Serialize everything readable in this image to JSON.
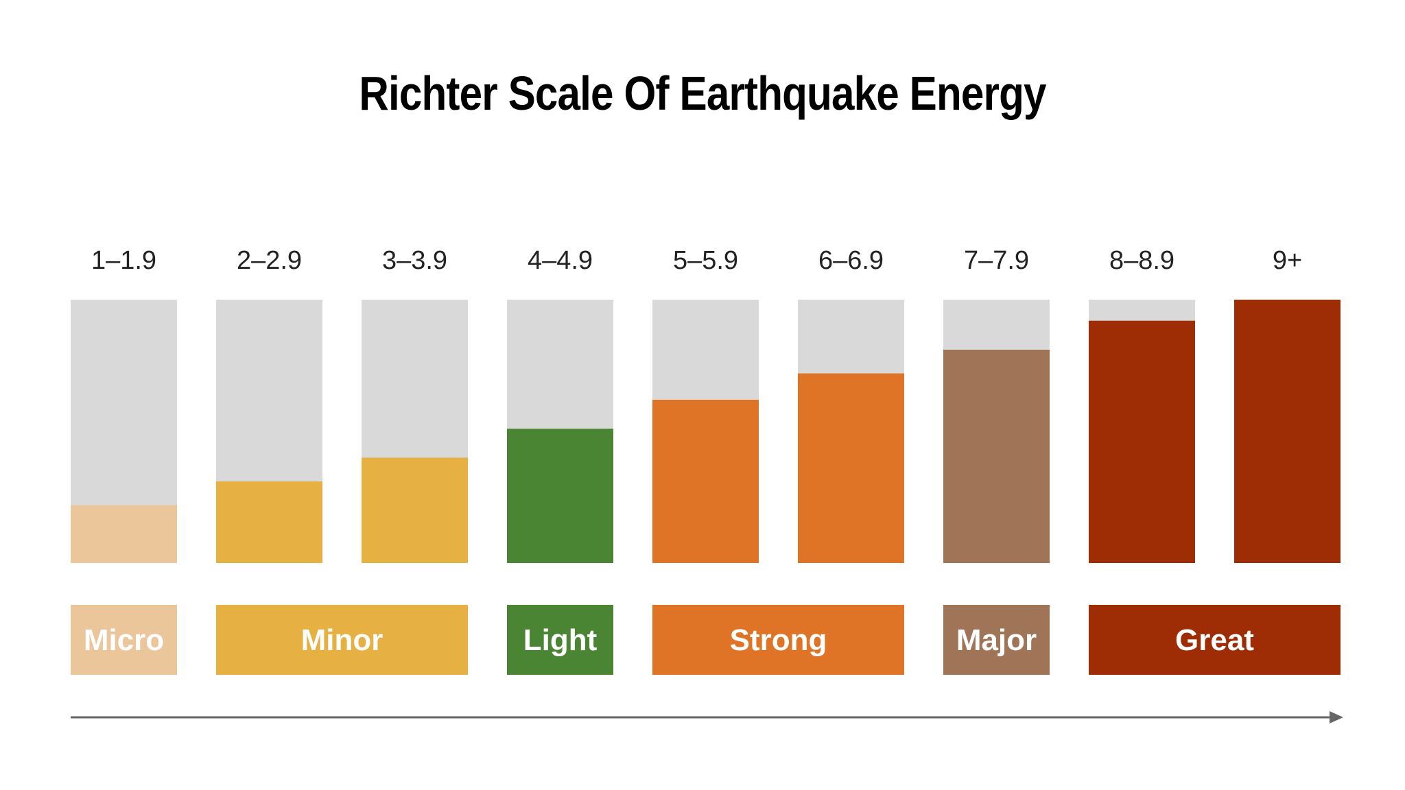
{
  "title": "Richter Scale Of Earthquake Energy",
  "chart_data": {
    "type": "bar",
    "title": "Richter Scale Of Earthquake Energy",
    "xlabel": "",
    "ylabel": "",
    "ylim": [
      0,
      100
    ],
    "grid": false,
    "legend": "none",
    "categories": [
      "1–1.9",
      "2–2.9",
      "3–3.9",
      "4–4.9",
      "5–5.9",
      "6–6.9",
      "7–7.9",
      "8–8.9",
      "9+"
    ],
    "values": [
      22,
      31,
      40,
      51,
      62,
      72,
      81,
      92,
      100
    ],
    "max_value": 100,
    "colors": [
      "#EBC69B",
      "#E6B043",
      "#E6B043",
      "#4A8533",
      "#DF7427",
      "#DF7427",
      "#A07457",
      "#9E2C04",
      "#9E2C04"
    ],
    "track_color": "#D9D9D9",
    "groups": [
      {
        "label": "Micro",
        "start": 0,
        "end": 0,
        "color": "#EBC69B"
      },
      {
        "label": "Minor",
        "start": 1,
        "end": 2,
        "color": "#E6B043"
      },
      {
        "label": "Light",
        "start": 3,
        "end": 3,
        "color": "#4A8533"
      },
      {
        "label": "Strong",
        "start": 4,
        "end": 5,
        "color": "#DF7427"
      },
      {
        "label": "Major",
        "start": 6,
        "end": 6,
        "color": "#A07457"
      },
      {
        "label": "Great",
        "start": 7,
        "end": 8,
        "color": "#9E2C04"
      }
    ],
    "arrow_color": "#666666"
  }
}
